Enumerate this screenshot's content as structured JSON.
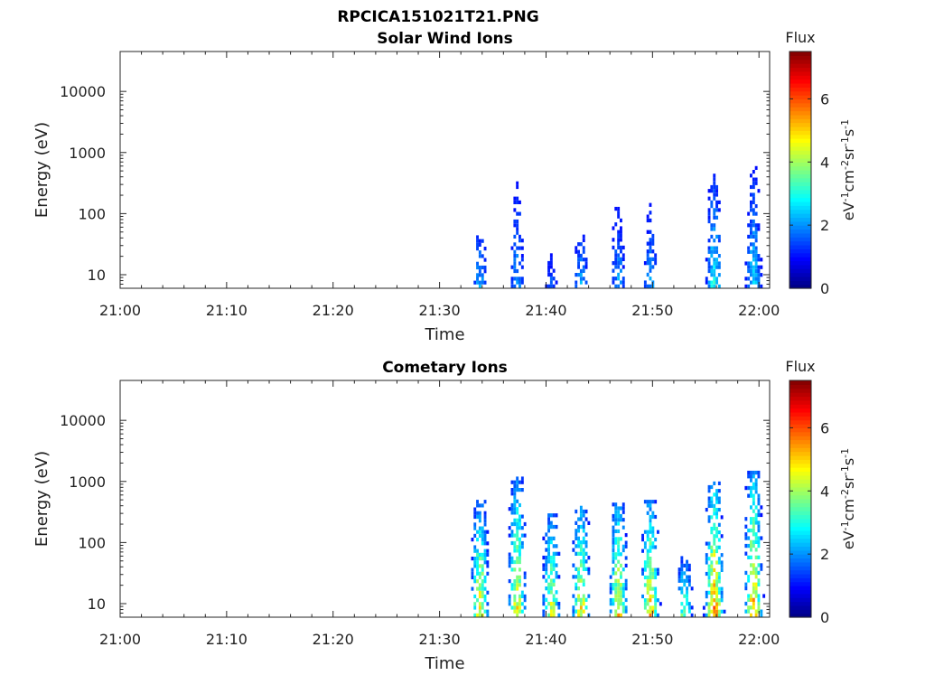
{
  "figure_title": "RPCICA151021T21.PNG",
  "chart_data": [
    {
      "type": "heatmap",
      "title": "Solar Wind Ions",
      "xlabel": "Time",
      "ylabel": "Energy (eV)",
      "x_ticks": [
        "21:00",
        "21:10",
        "21:20",
        "21:30",
        "21:40",
        "21:50",
        "22:00"
      ],
      "xlim_minutes": [
        0,
        61
      ],
      "y_scale": "log",
      "y_ticks": [
        "10",
        "100",
        "1000",
        "10000"
      ],
      "ylim": [
        6,
        45000
      ],
      "colorbar": {
        "label": "Flux",
        "unit": "eV-1cm-2sr-1s-1",
        "ticks": [
          "0",
          "2",
          "4",
          "6"
        ],
        "range": [
          0,
          7.5
        ],
        "colormap": "jet"
      },
      "bursts": [
        {
          "t": 33.8,
          "e_lo": 6,
          "e_hi": 90,
          "peak": 2.6
        },
        {
          "t": 37.3,
          "e_lo": 6,
          "e_hi": 600,
          "peak": 2.4
        },
        {
          "t": 40.5,
          "e_lo": 6,
          "e_hi": 30,
          "peak": 2.0
        },
        {
          "t": 43.3,
          "e_lo": 6,
          "e_hi": 70,
          "peak": 2.6
        },
        {
          "t": 46.8,
          "e_lo": 6,
          "e_hi": 200,
          "peak": 2.5
        },
        {
          "t": 49.8,
          "e_lo": 6,
          "e_hi": 200,
          "peak": 2.5
        },
        {
          "t": 55.8,
          "e_lo": 6,
          "e_hi": 450,
          "peak": 3.4
        },
        {
          "t": 59.5,
          "e_lo": 6,
          "e_hi": 600,
          "peak": 3.0
        }
      ]
    },
    {
      "type": "heatmap",
      "title": "Cometary Ions",
      "xlabel": "Time",
      "ylabel": "Energy (eV)",
      "x_ticks": [
        "21:00",
        "21:10",
        "21:20",
        "21:30",
        "21:40",
        "21:50",
        "22:00"
      ],
      "xlim_minutes": [
        0,
        61
      ],
      "y_scale": "log",
      "y_ticks": [
        "10",
        "100",
        "1000",
        "10000"
      ],
      "ylim": [
        6,
        45000
      ],
      "colorbar": {
        "label": "Flux",
        "unit": "eV-1cm-2sr-1s-1",
        "ticks": [
          "0",
          "2",
          "4",
          "6"
        ],
        "range": [
          0,
          7.5
        ],
        "colormap": "jet"
      },
      "bursts": [
        {
          "t": 33.8,
          "e_lo": 6,
          "e_hi": 500,
          "peak": 5.6
        },
        {
          "t": 37.3,
          "e_lo": 6,
          "e_hi": 1200,
          "peak": 5.6
        },
        {
          "t": 40.5,
          "e_lo": 6,
          "e_hi": 300,
          "peak": 5.2
        },
        {
          "t": 43.3,
          "e_lo": 6,
          "e_hi": 400,
          "peak": 5.6
        },
        {
          "t": 46.8,
          "e_lo": 6,
          "e_hi": 450,
          "peak": 5.8
        },
        {
          "t": 49.8,
          "e_lo": 6,
          "e_hi": 500,
          "peak": 6.0
        },
        {
          "t": 53.0,
          "e_lo": 6,
          "e_hi": 60,
          "peak": 4.4
        },
        {
          "t": 55.8,
          "e_lo": 6,
          "e_hi": 1000,
          "peak": 6.6
        },
        {
          "t": 59.5,
          "e_lo": 6,
          "e_hi": 1500,
          "peak": 6.2
        }
      ]
    }
  ]
}
